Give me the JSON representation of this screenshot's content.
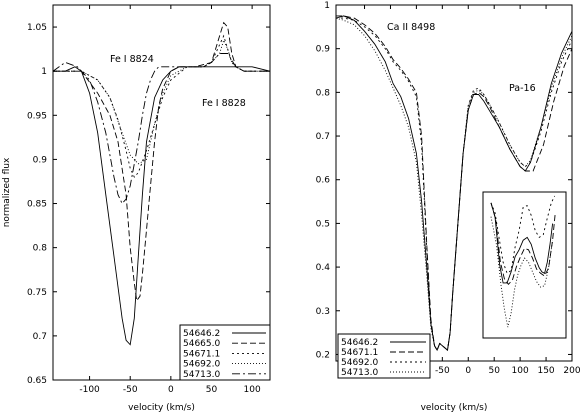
{
  "chart_data": [
    {
      "type": "line",
      "ylabel": "normalized flux",
      "xlabel": "velocity (km/s)",
      "xlim": [
        -145,
        122
      ],
      "ylim": [
        0.65,
        1.075
      ],
      "xticks": [
        -100,
        -50,
        0,
        50,
        100
      ],
      "yticks": [
        0.65,
        0.7,
        0.75,
        0.8,
        0.85,
        0.9,
        0.95,
        1,
        1.05
      ],
      "ytick_labels": [
        "0.65",
        "0.7",
        "0.75",
        "0.8",
        "0.85",
        "0.9",
        "0.95",
        "1",
        "1.05"
      ],
      "grid": false,
      "legend_position": "bottom-right",
      "annotations": [
        {
          "text": "Fe I 8824",
          "x": -80,
          "y": 1.04
        },
        {
          "text": "Fe I 8828",
          "x": 60,
          "y": 0.975
        }
      ],
      "series": [
        {
          "name": "54646.2",
          "dash": "",
          "x": [
            -145,
            -130,
            -118,
            -110,
            -100,
            -90,
            -80,
            -70,
            -60,
            -55,
            -50,
            -45,
            -40,
            -35,
            -30,
            -20,
            -10,
            0,
            10,
            30,
            60,
            80,
            100,
            122
          ],
          "y": [
            1.0,
            1.0,
            1.005,
            1.0,
            0.975,
            0.93,
            0.86,
            0.79,
            0.72,
            0.695,
            0.69,
            0.72,
            0.79,
            0.86,
            0.92,
            0.97,
            0.99,
            1.0,
            1.005,
            1.005,
            1.005,
            1.005,
            1.005,
            1.0
          ]
        },
        {
          "name": "54665.0",
          "dash": "6,3",
          "x": [
            -145,
            -130,
            -110,
            -90,
            -75,
            -65,
            -55,
            -50,
            -45,
            -42,
            -38,
            -35,
            -30,
            -25,
            -20,
            -15,
            -10,
            0,
            10,
            30,
            50,
            60,
            65,
            70,
            75,
            80,
            90,
            100,
            122
          ],
          "y": [
            1.0,
            1.0,
            1.0,
            0.975,
            0.95,
            0.92,
            0.86,
            0.8,
            0.76,
            0.74,
            0.745,
            0.77,
            0.82,
            0.87,
            0.92,
            0.96,
            0.98,
            1.0,
            1.005,
            1.005,
            1.01,
            1.04,
            1.055,
            1.05,
            1.02,
            1.005,
            1.0,
            1.0,
            1.0
          ]
        },
        {
          "name": "54671.1",
          "dash": "2,3",
          "x": [
            -145,
            -130,
            -110,
            -90,
            -75,
            -65,
            -55,
            -50,
            -45,
            -40,
            -30,
            -20,
            -10,
            0,
            20,
            40,
            50,
            60,
            65,
            70,
            75,
            80,
            90,
            100,
            122
          ],
          "y": [
            1.0,
            1.0,
            1.0,
            0.99,
            0.97,
            0.945,
            0.91,
            0.89,
            0.88,
            0.885,
            0.91,
            0.94,
            0.97,
            0.99,
            1.005,
            1.005,
            1.01,
            1.03,
            1.04,
            1.025,
            1.01,
            1.005,
            1.0,
            1.0,
            1.0
          ]
        },
        {
          "name": "54692.0",
          "dash": "1,2",
          "x": [
            -145,
            -130,
            -110,
            -90,
            -75,
            -60,
            -50,
            -40,
            -30,
            -20,
            -10,
            0,
            20,
            40,
            50,
            60,
            65,
            70,
            75,
            80,
            90,
            100,
            122
          ],
          "y": [
            1.0,
            1.0,
            1.0,
            0.99,
            0.97,
            0.93,
            0.905,
            0.895,
            0.9,
            0.94,
            0.975,
            0.995,
            1.005,
            1.005,
            1.01,
            1.02,
            1.035,
            1.025,
            1.01,
            1.005,
            1.0,
            1.0,
            1.0
          ]
        },
        {
          "name": "54713.0",
          "dash": "8,3,2,3",
          "x": [
            -145,
            -130,
            -115,
            -100,
            -90,
            -80,
            -70,
            -65,
            -60,
            -55,
            -50,
            -45,
            -40,
            -35,
            -30,
            -25,
            -20,
            -15,
            -10,
            0,
            20,
            40,
            50,
            60,
            70,
            80,
            90,
            100,
            122
          ],
          "y": [
            1.0,
            1.01,
            1.005,
            0.99,
            0.965,
            0.93,
            0.88,
            0.86,
            0.85,
            0.855,
            0.87,
            0.895,
            0.92,
            0.95,
            0.975,
            0.99,
            1.0,
            1.005,
            1.005,
            1.005,
            1.005,
            1.005,
            1.01,
            1.02,
            1.02,
            1.005,
            1.0,
            1.0,
            1.0
          ]
        }
      ]
    },
    {
      "type": "line",
      "ylabel": "",
      "xlabel": "velocity (km/s)",
      "xlim": [
        -255,
        200
      ],
      "ylim": [
        0.185,
        1.0
      ],
      "xticks": [
        -200,
        -150,
        -100,
        -50,
        0,
        50,
        100,
        150,
        200
      ],
      "yticks": [
        0.2,
        0.3,
        0.4,
        0.5,
        0.6,
        0.7,
        0.8,
        0.9,
        1
      ],
      "ytick_labels": [
        "0.2",
        "0.3",
        "0.4",
        "0.5",
        "0.6",
        "0.7",
        "0.8",
        "0.9",
        "1"
      ],
      "grid": false,
      "legend_position": "bottom-left",
      "annotations": [
        {
          "text": "Ca II 8498",
          "x": -145,
          "y": 0.965
        },
        {
          "text": "Pa-16",
          "x": 60,
          "y": 0.83
        }
      ],
      "series": [
        {
          "name": "54646.2",
          "dash": "",
          "x": [
            -255,
            -240,
            -220,
            -200,
            -180,
            -160,
            -145,
            -130,
            -115,
            -100,
            -90,
            -80,
            -72,
            -65,
            -60,
            -55,
            -50,
            -45,
            -40,
            -35,
            -30,
            -20,
            -10,
            0,
            10,
            20,
            30,
            40,
            60,
            80,
            100,
            110,
            120,
            140,
            160,
            180,
            200
          ],
          "y": [
            0.97,
            0.975,
            0.965,
            0.94,
            0.91,
            0.87,
            0.82,
            0.79,
            0.74,
            0.66,
            0.55,
            0.4,
            0.27,
            0.22,
            0.21,
            0.225,
            0.22,
            0.215,
            0.21,
            0.25,
            0.34,
            0.5,
            0.66,
            0.76,
            0.795,
            0.795,
            0.78,
            0.76,
            0.72,
            0.67,
            0.63,
            0.62,
            0.64,
            0.72,
            0.82,
            0.89,
            0.94
          ]
        },
        {
          "name": "54671.1",
          "dash": "6,3",
          "x": [
            -255,
            -240,
            -220,
            -200,
            -180,
            -160,
            -145,
            -130,
            -115,
            -100,
            -90,
            -80,
            -72,
            -65,
            -60,
            -55,
            -50,
            -45,
            -40,
            -35,
            -30,
            -20,
            -10,
            0,
            10,
            20,
            30,
            40,
            60,
            80,
            100,
            110,
            125,
            145,
            165,
            185,
            200
          ],
          "y": [
            0.975,
            0.975,
            0.97,
            0.955,
            0.935,
            0.905,
            0.875,
            0.855,
            0.83,
            0.8,
            0.7,
            0.45,
            0.28,
            0.22,
            0.21,
            0.225,
            0.22,
            0.215,
            0.21,
            0.25,
            0.34,
            0.5,
            0.66,
            0.76,
            0.795,
            0.8,
            0.79,
            0.77,
            0.72,
            0.67,
            0.63,
            0.62,
            0.62,
            0.68,
            0.78,
            0.86,
            0.9
          ]
        },
        {
          "name": "54692.0",
          "dash": "2,3",
          "x": [
            -255,
            -240,
            -220,
            -200,
            -180,
            -160,
            -145,
            -130,
            -115,
            -100,
            -90,
            -80,
            -72,
            -65,
            -60,
            -55,
            -50,
            -45,
            -40,
            -35,
            -30,
            -20,
            -10,
            0,
            10,
            20,
            30,
            40,
            60,
            80,
            100,
            110,
            120,
            140,
            160,
            180,
            200
          ],
          "y": [
            0.97,
            0.97,
            0.965,
            0.95,
            0.93,
            0.9,
            0.87,
            0.85,
            0.825,
            0.79,
            0.68,
            0.44,
            0.27,
            0.22,
            0.21,
            0.225,
            0.22,
            0.215,
            0.21,
            0.25,
            0.34,
            0.5,
            0.66,
            0.77,
            0.805,
            0.81,
            0.795,
            0.775,
            0.73,
            0.68,
            0.64,
            0.63,
            0.64,
            0.71,
            0.8,
            0.87,
            0.92
          ]
        },
        {
          "name": "54713.0",
          "dash": "1,2",
          "x": [
            -255,
            -240,
            -220,
            -200,
            -180,
            -160,
            -145,
            -130,
            -115,
            -100,
            -90,
            -80,
            -72,
            -65,
            -60,
            -55,
            -50,
            -45,
            -40,
            -35,
            -30,
            -20,
            -10,
            0,
            10,
            20,
            30,
            40,
            60,
            80,
            100,
            110,
            120,
            140,
            160,
            180,
            200
          ],
          "y": [
            0.97,
            0.965,
            0.955,
            0.93,
            0.895,
            0.85,
            0.81,
            0.77,
            0.72,
            0.64,
            0.52,
            0.38,
            0.26,
            0.22,
            0.21,
            0.225,
            0.22,
            0.215,
            0.21,
            0.25,
            0.34,
            0.5,
            0.66,
            0.77,
            0.8,
            0.805,
            0.795,
            0.775,
            0.73,
            0.68,
            0.64,
            0.63,
            0.645,
            0.72,
            0.81,
            0.88,
            0.93
          ]
        }
      ],
      "inset": {
        "note": "zoom of Pa-16 line core; axes unlabeled",
        "xlim": [
          0,
          10
        ],
        "ylim": [
          0,
          10
        ],
        "series": [
          {
            "name": "54646.2",
            "dash": "",
            "x": [
              0,
              0.6,
              1.3,
              1.8,
              2.4,
              3.0,
              3.6,
              4.2,
              4.8,
              5.4,
              6.0,
              6.6,
              7.2,
              7.6,
              8.0,
              8.4,
              8.8,
              9.2
            ],
            "y": [
              9.5,
              8.5,
              5.0,
              3.7,
              3.7,
              4.5,
              5.6,
              6.1,
              6.8,
              7.0,
              6.5,
              5.5,
              4.8,
              4.5,
              4.4,
              5.2,
              6.5,
              8.0
            ]
          },
          {
            "name": "54671.1",
            "dash": "6,3",
            "x": [
              0,
              0.7,
              1.4,
              2.0,
              2.6,
              3.2,
              3.8,
              4.4,
              5.0,
              5.6,
              6.2,
              6.8,
              7.4,
              8.0,
              8.6,
              9.2,
              9.6
            ],
            "y": [
              9.5,
              8.3,
              5.2,
              4.0,
              3.6,
              3.9,
              4.9,
              5.6,
              6.2,
              6.1,
              5.5,
              4.7,
              4.4,
              4.2,
              4.8,
              6.8,
              8.8
            ]
          },
          {
            "name": "54692.0",
            "dash": "2,3",
            "x": [
              0,
              0.6,
              1.2,
              1.8,
              2.4,
              3.0,
              3.6,
              4.2,
              4.8,
              5.4,
              6.0,
              6.6,
              7.2,
              7.8,
              8.4,
              9.0,
              9.5
            ],
            "y": [
              9.5,
              8.8,
              7.0,
              5.2,
              4.4,
              4.6,
              6.3,
              7.5,
              9.2,
              9.3,
              8.6,
              7.5,
              7.0,
              7.2,
              8.4,
              9.5,
              10.0
            ]
          },
          {
            "name": "54713.0",
            "dash": "1,2",
            "x": [
              0,
              0.8,
              1.5,
              2.0,
              2.5,
              3.0,
              3.5,
              4.0,
              4.5,
              5.0,
              5.6,
              6.2,
              6.8,
              7.4,
              8.0,
              8.6,
              9.2
            ],
            "y": [
              8.5,
              6.5,
              3.5,
              1.8,
              0.5,
              1.5,
              3.2,
              4.3,
              5.0,
              5.5,
              5.2,
              4.5,
              3.8,
              3.4,
              3.5,
              4.8,
              6.8
            ]
          }
        ]
      }
    }
  ]
}
